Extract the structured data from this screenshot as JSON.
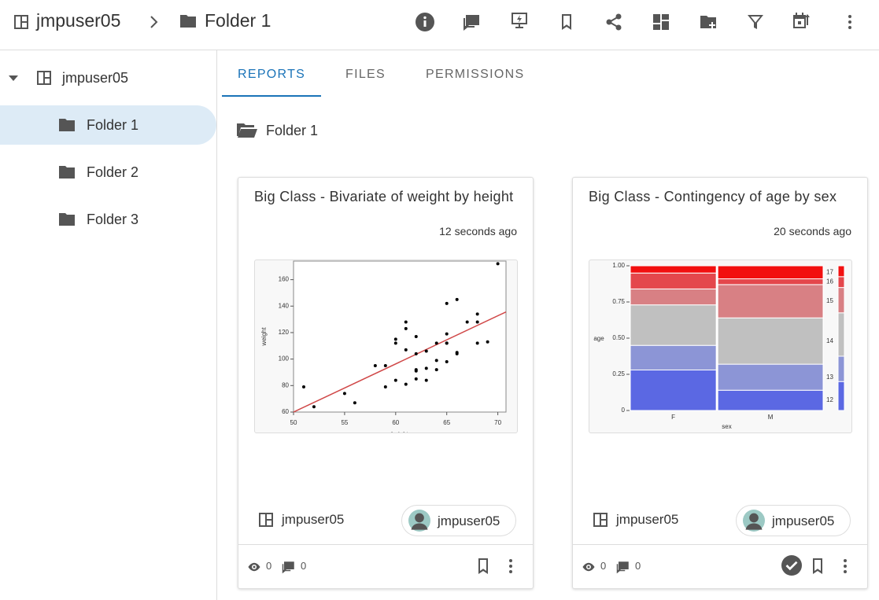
{
  "header": {
    "breadcrumb": [
      "jmpuser05",
      "Folder 1"
    ]
  },
  "sidebar": {
    "root": "jmpuser05",
    "folders": [
      "Folder 1",
      "Folder 2",
      "Folder 3"
    ]
  },
  "tabs": [
    "REPORTS",
    "FILES",
    "PERMISSIONS"
  ],
  "current_folder": "Folder 1",
  "cards": [
    {
      "title": "Big Class - Bivariate of weight by height",
      "time": "12 seconds ago",
      "owner": "jmpuser05",
      "author": "jmpuser05",
      "views": 0,
      "comments": 0,
      "chart_data": {
        "type": "scatter",
        "x_label": "height",
        "y_label": "weight",
        "x": [
          51,
          52,
          55,
          56,
          58,
          59,
          59,
          60,
          60,
          60,
          61,
          61,
          61,
          61,
          62,
          62,
          62,
          62,
          62,
          63,
          63,
          63,
          64,
          64,
          64,
          65,
          65,
          65,
          65,
          65,
          66,
          66,
          66,
          67,
          68,
          68,
          68,
          69,
          70
        ],
        "series": [
          {
            "color": "#000000",
            "values": [
              79,
              64,
              74,
              67,
              95,
              95,
              79,
              84,
              115,
              112,
              128,
              123,
              81,
              107,
              117,
              104,
              92,
              91,
              85,
              106,
              93,
              84,
              112,
              99,
              92,
              142,
              119,
              112,
              112,
              98,
              145,
              105,
              104,
              128,
              134,
              128,
              112,
              113,
              172
            ]
          }
        ],
        "fit_line": {
          "color": "#d04848",
          "x": [
            50,
            70.8
          ],
          "values": [
            60,
            135.6
          ]
        },
        "xlim": [
          50,
          70.8
        ],
        "ylim": [
          60,
          174
        ],
        "xticks": [
          50,
          55,
          60,
          65,
          70
        ],
        "yticks": [
          60,
          80,
          100,
          120,
          140,
          160
        ]
      }
    },
    {
      "title": "Big Class - Contingency of age by sex",
      "time": "20 seconds ago",
      "owner": "jmpuser05",
      "author": "jmpuser05",
      "views": 0,
      "comments": 0,
      "chart_data": {
        "type": "mosaic",
        "x_label": "sex",
        "y_label": "age",
        "categories": [
          "F",
          "M"
        ],
        "category_shares": [
          0.45,
          0.55
        ],
        "series": [
          {
            "name": "12",
            "color": "#5b68e3",
            "values": [
              0.28,
              0.14
            ],
            "overall": 0.2
          },
          {
            "name": "13",
            "color": "#8c95d6",
            "values": [
              0.17,
              0.18
            ],
            "overall": 0.175
          },
          {
            "name": "14",
            "color": "#c0c0c0",
            "values": [
              0.28,
              0.32
            ],
            "overall": 0.3
          },
          {
            "name": "15",
            "color": "#d88084",
            "values": [
              0.11,
              0.23
            ],
            "overall": 0.175
          },
          {
            "name": "16",
            "color": "#e4474c",
            "values": [
              0.11,
              0.04
            ],
            "overall": 0.075
          },
          {
            "name": "17",
            "color": "#f21010",
            "values": [
              0.05,
              0.09
            ],
            "overall": 0.075
          }
        ],
        "ylim": [
          0,
          1
        ],
        "yticks": [
          0,
          0.25,
          {
            "value": 0.5,
            "label": "0.50"
          },
          0.75,
          {
            "value": 1,
            "label": "1.00"
          }
        ]
      }
    }
  ]
}
